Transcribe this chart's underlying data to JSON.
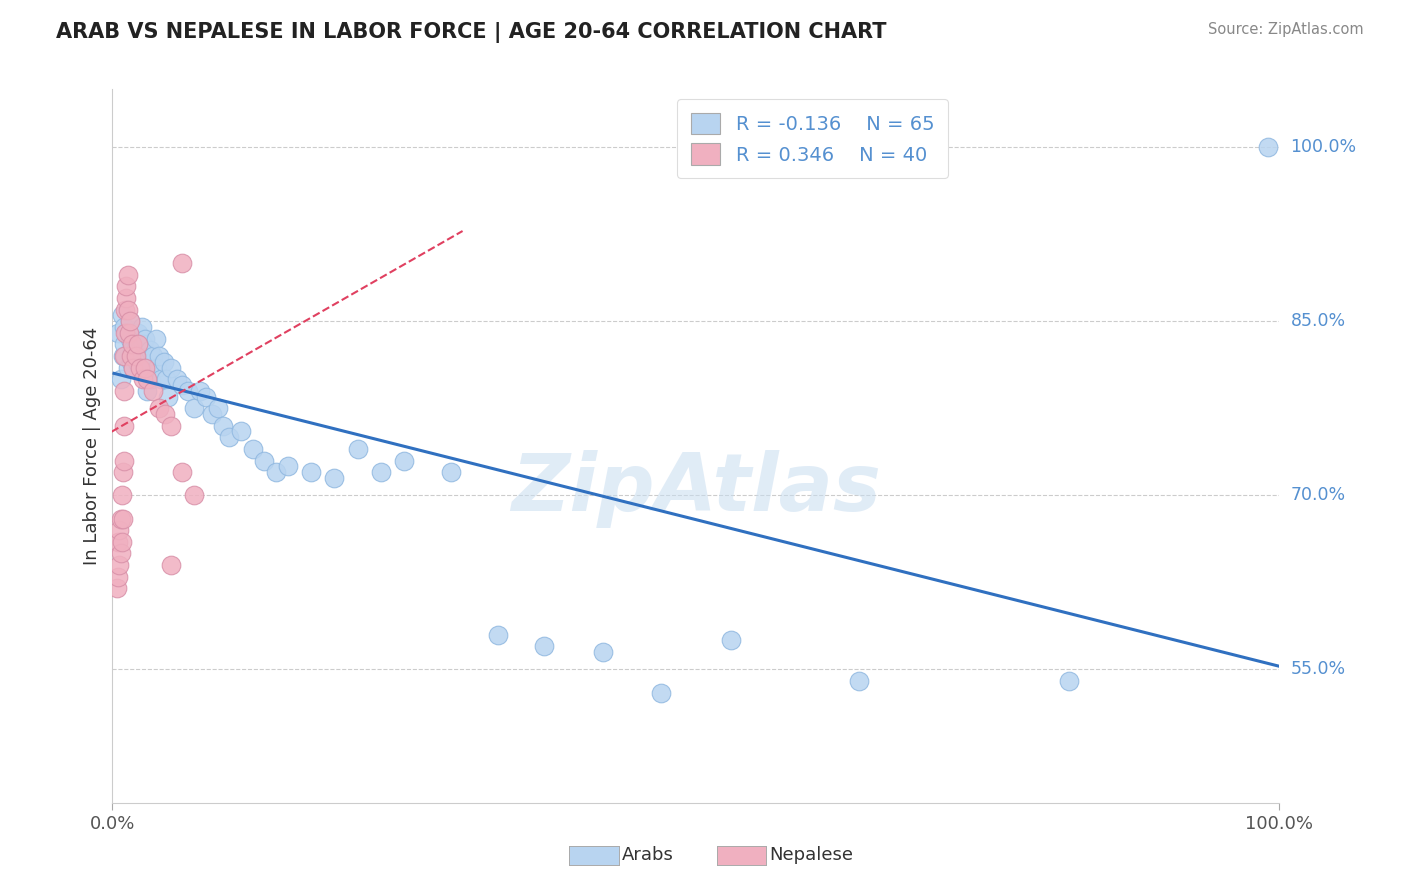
{
  "title": "ARAB VS NEPALESE IN LABOR FORCE | AGE 20-64 CORRELATION CHART",
  "source": "Source: ZipAtlas.com",
  "ylabel": "In Labor Force | Age 20-64",
  "xlim": [
    0.0,
    1.0
  ],
  "ylim": [
    0.435,
    1.05
  ],
  "ytick_values": [
    0.55,
    0.7,
    0.85,
    1.0
  ],
  "ytick_labels": [
    "55.0%",
    "70.0%",
    "85.0%",
    "100.0%"
  ],
  "legend_arab_R": "-0.136",
  "legend_arab_N": "65",
  "legend_nep_R": "0.346",
  "legend_nep_N": "40",
  "arab_fill": "#b8d4f0",
  "arab_edge": "#90b8e0",
  "nep_fill": "#f0b0c0",
  "nep_edge": "#d890a8",
  "arab_line_color": "#3070c0",
  "nep_line_color": "#e04060",
  "grid_color": "#cccccc",
  "right_label_color": "#5590d0",
  "arab_x": [
    0.005,
    0.007,
    0.008,
    0.009,
    0.01,
    0.01,
    0.011,
    0.012,
    0.013,
    0.015,
    0.015,
    0.016,
    0.017,
    0.018,
    0.019,
    0.02,
    0.021,
    0.022,
    0.023,
    0.025,
    0.026,
    0.027,
    0.028,
    0.03,
    0.031,
    0.032,
    0.033,
    0.035,
    0.037,
    0.038,
    0.04,
    0.042,
    0.044,
    0.046,
    0.048,
    0.05,
    0.055,
    0.06,
    0.065,
    0.07,
    0.075,
    0.08,
    0.085,
    0.09,
    0.095,
    0.1,
    0.11,
    0.12,
    0.13,
    0.14,
    0.15,
    0.17,
    0.19,
    0.21,
    0.23,
    0.25,
    0.29,
    0.33,
    0.37,
    0.42,
    0.47,
    0.53,
    0.64,
    0.82,
    0.99
  ],
  "arab_y": [
    0.84,
    0.8,
    0.855,
    0.82,
    0.845,
    0.83,
    0.82,
    0.84,
    0.81,
    0.85,
    0.835,
    0.815,
    0.825,
    0.81,
    0.82,
    0.83,
    0.815,
    0.84,
    0.825,
    0.845,
    0.83,
    0.815,
    0.835,
    0.79,
    0.81,
    0.825,
    0.8,
    0.82,
    0.835,
    0.81,
    0.82,
    0.8,
    0.815,
    0.8,
    0.785,
    0.81,
    0.8,
    0.795,
    0.79,
    0.775,
    0.79,
    0.785,
    0.77,
    0.775,
    0.76,
    0.75,
    0.755,
    0.74,
    0.73,
    0.72,
    0.725,
    0.72,
    0.715,
    0.74,
    0.72,
    0.73,
    0.72,
    0.58,
    0.57,
    0.565,
    0.53,
    0.575,
    0.54,
    0.54,
    1.0
  ],
  "nep_x": [
    0.004,
    0.005,
    0.005,
    0.006,
    0.006,
    0.007,
    0.007,
    0.008,
    0.008,
    0.009,
    0.009,
    0.01,
    0.01,
    0.01,
    0.01,
    0.011,
    0.011,
    0.012,
    0.012,
    0.013,
    0.013,
    0.014,
    0.015,
    0.016,
    0.017,
    0.018,
    0.02,
    0.022,
    0.024,
    0.026,
    0.028,
    0.03,
    0.035,
    0.04,
    0.045,
    0.05,
    0.06,
    0.07,
    0.05,
    0.06
  ],
  "nep_y": [
    0.62,
    0.63,
    0.66,
    0.64,
    0.67,
    0.65,
    0.68,
    0.66,
    0.7,
    0.68,
    0.72,
    0.73,
    0.76,
    0.79,
    0.82,
    0.84,
    0.86,
    0.87,
    0.88,
    0.89,
    0.86,
    0.84,
    0.85,
    0.82,
    0.83,
    0.81,
    0.82,
    0.83,
    0.81,
    0.8,
    0.81,
    0.8,
    0.79,
    0.775,
    0.77,
    0.76,
    0.72,
    0.7,
    0.64,
    0.9
  ],
  "watermark_text": "ZipAtlas",
  "watermark_color": "#c8ddf0",
  "bottom_legend_labels": [
    "Arabs",
    "Nepalese"
  ]
}
